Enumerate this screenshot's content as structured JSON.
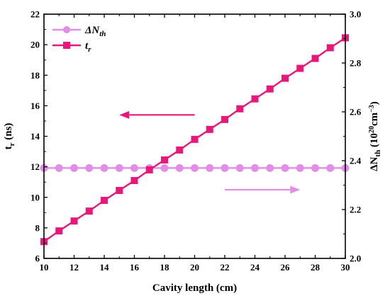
{
  "chart_data": {
    "type": "line",
    "xlabel": "Cavity length (cm)",
    "ylabel_left": "t",
    "ylabel_left_sub": "r",
    "ylabel_left_unit": " (ns)",
    "ylabel_right": "ΔN",
    "ylabel_right_sub": "th",
    "ylabel_right_unit": " (10",
    "ylabel_right_sup": "20",
    "ylabel_right_unit2": "cm",
    "ylabel_right_sup2": "−3",
    "ylabel_right_close": ")",
    "xlim": [
      10,
      30
    ],
    "ylim_left": [
      6,
      22
    ],
    "ylim_right": [
      2.0,
      3.0
    ],
    "x_ticks": [
      "10",
      "12",
      "14",
      "16",
      "18",
      "20",
      "22",
      "24",
      "26",
      "28",
      "30"
    ],
    "y_left_ticks": [
      "6",
      "8",
      "10",
      "12",
      "14",
      "16",
      "18",
      "20",
      "22"
    ],
    "y_right_ticks": [
      "2.0",
      "2.2",
      "2.4",
      "2.6",
      "2.8",
      "3.0"
    ],
    "legend_position": "top-left",
    "series": [
      {
        "name": "ΔN",
        "name_sub": "th",
        "axis": "right",
        "color": "#e28de6",
        "marker": "circle",
        "x": [
          10,
          11,
          12,
          13,
          14,
          15,
          16,
          17,
          18,
          19,
          20,
          21,
          22,
          23,
          24,
          25,
          26,
          27,
          28,
          29,
          30
        ],
        "y": [
          2.37,
          2.37,
          2.37,
          2.37,
          2.37,
          2.37,
          2.37,
          2.37,
          2.37,
          2.37,
          2.37,
          2.37,
          2.37,
          2.37,
          2.37,
          2.37,
          2.37,
          2.37,
          2.37,
          2.37,
          2.37
        ]
      },
      {
        "name": "t",
        "name_sub": "r",
        "axis": "left",
        "color": "#e6197a",
        "marker": "square",
        "x": [
          10,
          11,
          12,
          13,
          14,
          15,
          16,
          17,
          18,
          19,
          20,
          21,
          22,
          23,
          24,
          25,
          26,
          27,
          28,
          29,
          30
        ],
        "y": [
          7.1,
          7.8,
          8.45,
          9.1,
          9.8,
          10.45,
          11.1,
          11.8,
          12.45,
          13.1,
          13.8,
          14.45,
          15.1,
          15.8,
          16.45,
          17.1,
          17.8,
          18.45,
          19.1,
          19.8,
          20.45
        ]
      }
    ],
    "annotations": [
      {
        "type": "arrow",
        "direction": "left",
        "color": "#e6197a",
        "x_from": 20,
        "x_to": 15,
        "y_left": 15.4
      },
      {
        "type": "arrow",
        "direction": "right",
        "color": "#e28de6",
        "x_from": 22,
        "x_to": 27,
        "y_left": 10.5
      }
    ]
  }
}
